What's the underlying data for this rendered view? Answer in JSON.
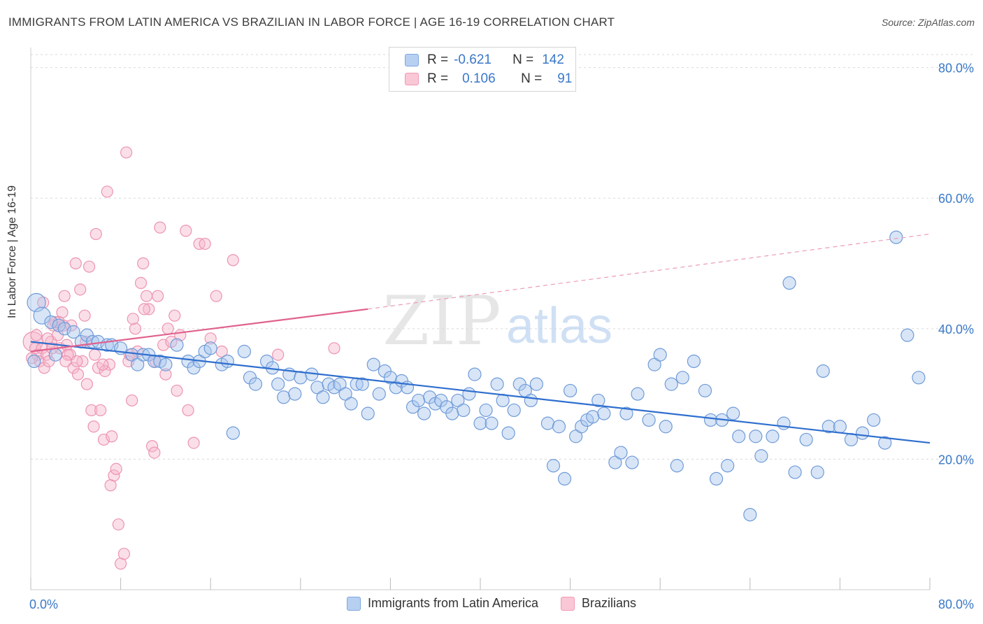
{
  "title": "IMMIGRANTS FROM LATIN AMERICA VS BRAZILIAN IN LABOR FORCE | AGE 16-19 CORRELATION CHART",
  "source": "Source: ZipAtlas.com",
  "watermark": {
    "zip": "ZIP",
    "atlas": "atlas"
  },
  "legend": {
    "r_label": "R =",
    "n_label": "N =",
    "series1": {
      "r": "-0.621",
      "n": "142"
    },
    "series2": {
      "r": "0.106",
      "n": "91"
    }
  },
  "colors": {
    "blue": "#3a78c8",
    "blue_fill": "#a9c6ee",
    "pink": "#e8729a",
    "pink_fill": "#f6b8cb"
  },
  "chart_data": {
    "type": "scatter",
    "title": "IMMIGRANTS FROM LATIN AMERICA VS BRAZILIAN IN LABOR FORCE | AGE 16-19 CORRELATION CHART",
    "xlabel": "",
    "ylabel": "In Labor Force | Age 16-19",
    "xlim": [
      0,
      80
    ],
    "ylim": [
      0,
      82
    ],
    "x_tick_labels": [
      "0.0%",
      "80.0%"
    ],
    "y_ticks": [
      20,
      40,
      60,
      80
    ],
    "y_tick_labels": [
      "20.0%",
      "40.0%",
      "60.0%",
      "80.0%"
    ],
    "grid": true,
    "legend_position": "top-center",
    "series": [
      {
        "name": "Immigrants from Latin America",
        "color": "#3a78c8",
        "trend": {
          "x0": 0,
          "y0": 38.0,
          "x1": 80,
          "y1": 22.5
        },
        "points": [
          [
            0.5,
            44
          ],
          [
            1,
            42
          ],
          [
            1.8,
            41
          ],
          [
            2.5,
            40.5
          ],
          [
            3,
            40
          ],
          [
            3.8,
            39.5
          ],
          [
            4.5,
            38
          ],
          [
            5,
            39
          ],
          [
            5.5,
            38
          ],
          [
            6,
            38
          ],
          [
            6.8,
            37.5
          ],
          [
            7.2,
            37.5
          ],
          [
            8,
            37
          ],
          [
            9,
            36
          ],
          [
            9.5,
            34.5
          ],
          [
            10,
            36
          ],
          [
            10.5,
            36
          ],
          [
            11,
            35
          ],
          [
            11.5,
            35
          ],
          [
            12,
            34.5
          ],
          [
            13,
            37.5
          ],
          [
            14,
            35
          ],
          [
            14.5,
            34
          ],
          [
            15,
            35
          ],
          [
            15.5,
            36.5
          ],
          [
            16,
            37
          ],
          [
            17,
            34.5
          ],
          [
            17.5,
            35
          ],
          [
            18,
            24
          ],
          [
            19,
            36.5
          ],
          [
            19.5,
            32.5
          ],
          [
            20,
            31.5
          ],
          [
            21,
            35
          ],
          [
            21.5,
            34
          ],
          [
            22,
            31.5
          ],
          [
            22.5,
            29.5
          ],
          [
            23,
            33
          ],
          [
            23.5,
            30
          ],
          [
            24,
            32.5
          ],
          [
            25,
            33
          ],
          [
            25.5,
            31
          ],
          [
            26,
            29.5
          ],
          [
            26.5,
            31.5
          ],
          [
            27,
            31
          ],
          [
            27.5,
            31.5
          ],
          [
            28,
            30
          ],
          [
            28.5,
            28.5
          ],
          [
            29,
            31.5
          ],
          [
            29.5,
            31.5
          ],
          [
            30,
            27
          ],
          [
            30.5,
            34.5
          ],
          [
            31,
            30
          ],
          [
            31.5,
            33.5
          ],
          [
            32,
            32.5
          ],
          [
            32.5,
            31
          ],
          [
            33,
            32
          ],
          [
            33.5,
            31
          ],
          [
            34,
            28
          ],
          [
            34.5,
            29
          ],
          [
            35,
            27
          ],
          [
            35.5,
            29.5
          ],
          [
            36,
            28.5
          ],
          [
            36.5,
            29
          ],
          [
            37,
            28
          ],
          [
            37.5,
            27
          ],
          [
            38,
            29
          ],
          [
            38.5,
            27.5
          ],
          [
            39,
            30
          ],
          [
            39.5,
            33
          ],
          [
            40,
            25.5
          ],
          [
            40.5,
            27.5
          ],
          [
            41,
            25.5
          ],
          [
            41.5,
            31.5
          ],
          [
            42,
            29
          ],
          [
            42.5,
            24
          ],
          [
            43,
            27.5
          ],
          [
            43.5,
            31.5
          ],
          [
            44,
            30.5
          ],
          [
            44.5,
            29
          ],
          [
            45,
            31.5
          ],
          [
            46,
            25.5
          ],
          [
            46.5,
            19
          ],
          [
            47,
            25
          ],
          [
            47.5,
            17
          ],
          [
            48,
            30.5
          ],
          [
            48.5,
            23.5
          ],
          [
            49,
            25
          ],
          [
            49.5,
            26
          ],
          [
            50,
            26.5
          ],
          [
            50.5,
            29
          ],
          [
            51,
            27
          ],
          [
            52,
            19.5
          ],
          [
            52.5,
            21
          ],
          [
            53,
            27
          ],
          [
            53.5,
            19.5
          ],
          [
            54,
            30
          ],
          [
            55,
            26
          ],
          [
            55.5,
            34.5
          ],
          [
            56,
            36
          ],
          [
            56.5,
            25
          ],
          [
            57,
            31.5
          ],
          [
            57.5,
            19
          ],
          [
            58,
            32.5
          ],
          [
            59,
            35
          ],
          [
            60,
            30.5
          ],
          [
            60.5,
            26
          ],
          [
            61,
            17
          ],
          [
            61.5,
            26
          ],
          [
            62,
            19
          ],
          [
            62.5,
            27
          ],
          [
            63,
            23.5
          ],
          [
            64,
            11.5
          ],
          [
            64.5,
            23.5
          ],
          [
            65,
            20.5
          ],
          [
            66,
            23.5
          ],
          [
            67,
            25.5
          ],
          [
            67.5,
            47
          ],
          [
            68,
            18
          ],
          [
            69,
            23
          ],
          [
            70,
            18
          ],
          [
            70.5,
            33.5
          ],
          [
            71,
            25
          ],
          [
            72,
            25
          ],
          [
            73,
            23
          ],
          [
            74,
            24
          ],
          [
            75,
            26
          ],
          [
            76,
            22.5
          ],
          [
            77,
            54
          ],
          [
            78,
            39
          ],
          [
            79,
            32.5
          ],
          [
            0.3,
            35
          ],
          [
            2.2,
            36
          ]
        ]
      },
      {
        "name": "Brazilians",
        "color": "#e8729a",
        "trend": {
          "x0": 0,
          "y0": 36.5,
          "x1": 30,
          "y1": 43.0,
          "dashed_to": {
            "x": 80,
            "y": 54.5
          }
        },
        "points": [
          [
            0.2,
            38
          ],
          [
            0.4,
            37
          ],
          [
            0.6,
            36
          ],
          [
            0.8,
            35
          ],
          [
            1,
            37
          ],
          [
            1.2,
            34
          ],
          [
            1.4,
            36
          ],
          [
            1.6,
            35
          ],
          [
            1.8,
            38
          ],
          [
            2,
            40.5
          ],
          [
            2.2,
            41
          ],
          [
            2.4,
            39
          ],
          [
            2.6,
            37
          ],
          [
            2.8,
            42.5
          ],
          [
            3,
            45
          ],
          [
            3.2,
            37.5
          ],
          [
            3.5,
            36
          ],
          [
            3.8,
            34
          ],
          [
            4,
            50
          ],
          [
            4.2,
            33
          ],
          [
            4.4,
            46
          ],
          [
            4.6,
            35
          ],
          [
            4.8,
            42
          ],
          [
            5,
            31.5
          ],
          [
            5.2,
            49.5
          ],
          [
            5.4,
            27.5
          ],
          [
            5.6,
            25
          ],
          [
            5.8,
            54.5
          ],
          [
            6,
            34
          ],
          [
            6.2,
            27.5
          ],
          [
            6.5,
            23
          ],
          [
            6.8,
            61
          ],
          [
            7,
            34.5
          ],
          [
            7.2,
            23.5
          ],
          [
            7.4,
            17.5
          ],
          [
            7.6,
            18.5
          ],
          [
            7.8,
            10
          ],
          [
            8,
            4
          ],
          [
            8.3,
            5.5
          ],
          [
            8.5,
            67
          ],
          [
            8.8,
            36
          ],
          [
            9,
            29
          ],
          [
            9.3,
            40
          ],
          [
            9.5,
            36.5
          ],
          [
            9.8,
            47
          ],
          [
            10,
            50
          ],
          [
            10.3,
            45
          ],
          [
            10.5,
            43
          ],
          [
            10.8,
            22
          ],
          [
            11,
            21
          ],
          [
            11.3,
            45
          ],
          [
            11.5,
            55.5
          ],
          [
            11.8,
            37.5
          ],
          [
            12,
            33
          ],
          [
            12.5,
            38
          ],
          [
            12.8,
            42
          ],
          [
            13,
            30.5
          ],
          [
            13.3,
            39
          ],
          [
            13.8,
            55
          ],
          [
            14,
            27.5
          ],
          [
            14.5,
            22.5
          ],
          [
            15,
            53
          ],
          [
            15.5,
            53
          ],
          [
            16,
            38.5
          ],
          [
            16.5,
            45
          ],
          [
            17,
            36.5
          ],
          [
            18,
            50.5
          ],
          [
            22,
            36
          ],
          [
            27,
            37
          ],
          [
            1.1,
            44
          ],
          [
            2.9,
            40.5
          ],
          [
            3.3,
            36
          ],
          [
            4.1,
            35
          ],
          [
            6.6,
            33.5
          ],
          [
            0.5,
            39
          ],
          [
            1.5,
            38.5
          ],
          [
            2.5,
            41
          ],
          [
            3.6,
            40.5
          ],
          [
            5.7,
            36
          ],
          [
            6.4,
            34.5
          ],
          [
            7.1,
            16
          ],
          [
            8.7,
            35
          ],
          [
            9.1,
            41.5
          ],
          [
            10.1,
            43
          ],
          [
            11.1,
            35
          ],
          [
            12.2,
            40
          ],
          [
            0.1,
            35.5
          ],
          [
            1.9,
            37
          ],
          [
            3.1,
            35
          ],
          [
            4.9,
            38
          ]
        ]
      }
    ]
  }
}
